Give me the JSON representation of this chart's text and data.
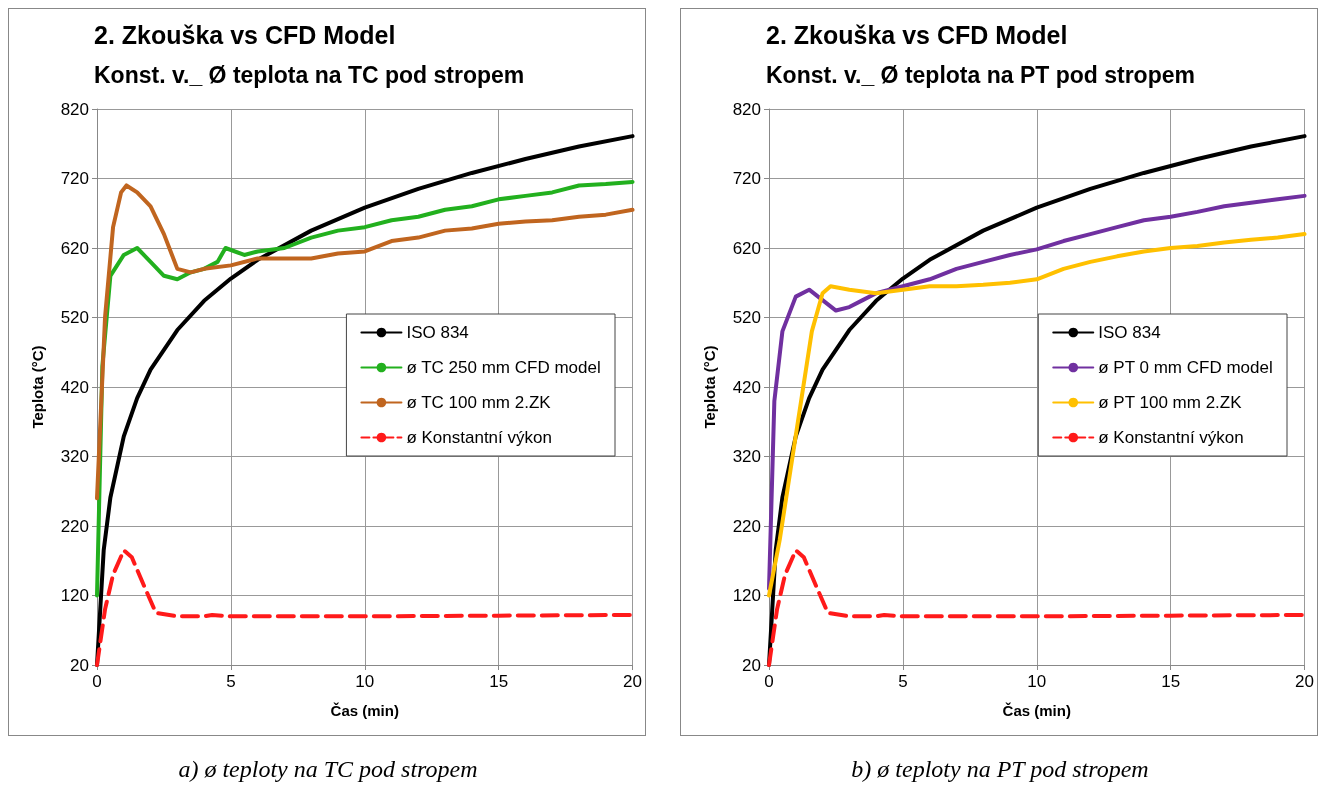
{
  "chart_data": [
    {
      "type": "line",
      "title": "2. Zkouška vs CFD Model",
      "subtitle": "Konst. v._ Ø teplota na TC pod stropem",
      "xlabel": "Čas (min)",
      "ylabel": "Teplota (°C)",
      "xlim": [
        0,
        20
      ],
      "xticks": [
        0,
        5,
        10,
        15,
        20
      ],
      "ylim": [
        20,
        820
      ],
      "yticks": [
        20,
        120,
        220,
        320,
        420,
        520,
        620,
        720,
        820
      ],
      "grid": true,
      "legend": "right",
      "marker": "none",
      "annotations": [
        "a)   ø teploty na TC pod stropem"
      ],
      "series": [
        {
          "name": "ISO 834",
          "color": "#000000",
          "x": [
            0,
            0.25,
            0.5,
            1,
            1.5,
            2,
            3,
            4,
            5,
            6,
            8,
            10,
            12,
            14,
            16,
            18,
            20
          ],
          "values": [
            20,
            185,
            261,
            349,
            404,
            445,
            502,
            544,
            576,
            603,
            645,
            678,
            705,
            728,
            748,
            766,
            781
          ]
        },
        {
          "name": "ø TC 250 mm CFD model",
          "color": "#22b01e",
          "x": [
            0,
            0.2,
            0.5,
            1,
            1.5,
            2,
            2.5,
            3,
            3.5,
            4,
            4.5,
            4.8,
            5.5,
            6,
            7,
            8,
            9,
            10,
            11,
            12,
            13,
            14,
            15,
            16,
            17,
            18,
            19,
            20
          ],
          "values": [
            120,
            450,
            580,
            610,
            620,
            600,
            580,
            575,
            585,
            590,
            600,
            620,
            610,
            615,
            620,
            635,
            645,
            650,
            660,
            665,
            675,
            680,
            690,
            695,
            700,
            710,
            712,
            715
          ]
        },
        {
          "name": "ø TC 100 mm 2.ZK",
          "color": "#c0651f",
          "x": [
            0,
            0.3,
            0.6,
            0.9,
            1.1,
            1.5,
            2,
            2.5,
            3,
            3.5,
            4,
            5,
            6,
            7,
            8,
            9,
            10,
            11,
            12,
            13,
            14,
            15,
            16,
            17,
            18,
            19,
            20
          ],
          "values": [
            260,
            520,
            650,
            700,
            710,
            700,
            680,
            640,
            590,
            585,
            590,
            595,
            605,
            605,
            605,
            612,
            615,
            630,
            635,
            645,
            648,
            655,
            658,
            660,
            665,
            668,
            675
          ]
        },
        {
          "name": "ø Konstantní výkon",
          "color": "#ff1a1a",
          "line_style": "dashed",
          "x": [
            0,
            0.3,
            0.6,
            1,
            1.3,
            1.8,
            2.2,
            3,
            4,
            4.3,
            5,
            10,
            15,
            20
          ],
          "values": [
            20,
            100,
            150,
            185,
            175,
            130,
            95,
            90,
            90,
            92,
            90,
            90,
            91,
            92
          ]
        }
      ]
    },
    {
      "type": "line",
      "title": "2. Zkouška vs CFD Model",
      "subtitle": "Konst. v._ Ø teplota na PT pod stropem",
      "xlabel": "Čas (min)",
      "ylabel": "Teplota (°C)",
      "xlim": [
        0,
        20
      ],
      "xticks": [
        0,
        5,
        10,
        15,
        20
      ],
      "ylim": [
        20,
        820
      ],
      "yticks": [
        20,
        120,
        220,
        320,
        420,
        520,
        620,
        720,
        820
      ],
      "grid": true,
      "legend": "right",
      "marker": "none",
      "annotations": [
        "b) ø teploty na PT pod stropem"
      ],
      "series": [
        {
          "name": "ISO 834",
          "color": "#000000",
          "x": [
            0,
            0.25,
            0.5,
            1,
            1.5,
            2,
            3,
            4,
            5,
            6,
            8,
            10,
            12,
            14,
            16,
            18,
            20
          ],
          "values": [
            20,
            185,
            261,
            349,
            404,
            445,
            502,
            544,
            576,
            603,
            645,
            678,
            705,
            728,
            748,
            766,
            781
          ]
        },
        {
          "name": "ø PT 0 mm CFD model",
          "color": "#7030a0",
          "x": [
            0,
            0.2,
            0.5,
            1,
            1.5,
            2,
            2.5,
            3,
            3.5,
            4,
            5,
            6,
            7,
            8,
            9,
            10,
            11,
            12,
            13,
            14,
            15,
            16,
            17,
            18,
            19,
            20
          ],
          "values": [
            130,
            400,
            500,
            550,
            560,
            545,
            530,
            535,
            545,
            555,
            565,
            575,
            590,
            600,
            610,
            618,
            630,
            640,
            650,
            660,
            665,
            672,
            680,
            685,
            690,
            695
          ]
        },
        {
          "name": "ø PT 100 mm 2.ZK",
          "color": "#ffc000",
          "x": [
            0,
            0.4,
            0.8,
            1.2,
            1.6,
            2,
            2.3,
            3,
            4,
            5,
            6,
            7,
            8,
            9,
            10,
            11,
            12,
            13,
            14,
            15,
            16,
            17,
            18,
            19,
            20
          ],
          "values": [
            120,
            200,
            300,
            400,
            500,
            555,
            565,
            560,
            555,
            560,
            565,
            565,
            567,
            570,
            575,
            590,
            600,
            608,
            615,
            620,
            623,
            628,
            632,
            635,
            640
          ]
        },
        {
          "name": "ø Konstantní výkon",
          "color": "#ff1a1a",
          "line_style": "dashed",
          "x": [
            0,
            0.3,
            0.6,
            1,
            1.3,
            1.8,
            2.2,
            3,
            4,
            4.3,
            5,
            10,
            15,
            20
          ],
          "values": [
            20,
            100,
            150,
            185,
            175,
            130,
            95,
            90,
            90,
            92,
            90,
            90,
            91,
            92
          ]
        }
      ]
    }
  ]
}
